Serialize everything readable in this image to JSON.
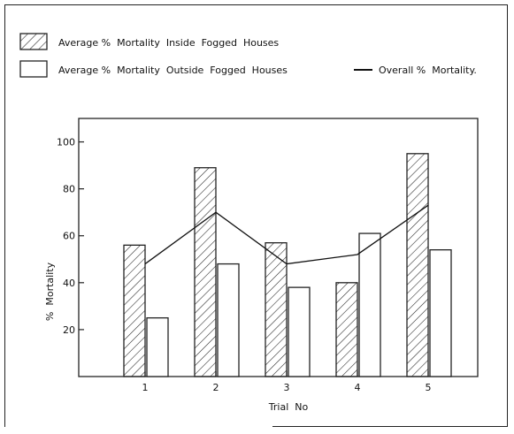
{
  "chart_data": {
    "type": "bar",
    "categories": [
      "1",
      "2",
      "3",
      "4",
      "5"
    ],
    "series": [
      {
        "name": "Average % Mortality Inside Fogged Houses",
        "values": [
          56,
          89,
          57,
          40,
          95
        ]
      },
      {
        "name": "Average % Mortality Outside Fogged Houses",
        "values": [
          25,
          48,
          38,
          61,
          54
        ]
      }
    ],
    "line_series": {
      "name": "Overall % Mortality.",
      "values": [
        48,
        70,
        48,
        52,
        73
      ]
    },
    "legend": {
      "inside_label": "Average %  Mortality  Inside  Fogged  Houses",
      "outside_label": "Average %  Mortality  Outside  Fogged  Houses",
      "overall_label": "Overall %  Mortality."
    },
    "title": "",
    "xlabel": "Trial  No",
    "ylabel": "%  Mortality",
    "yticks": [
      20,
      40,
      60,
      80,
      100
    ],
    "ylim": [
      0,
      110
    ],
    "grid": false,
    "legend_placement": "top"
  }
}
